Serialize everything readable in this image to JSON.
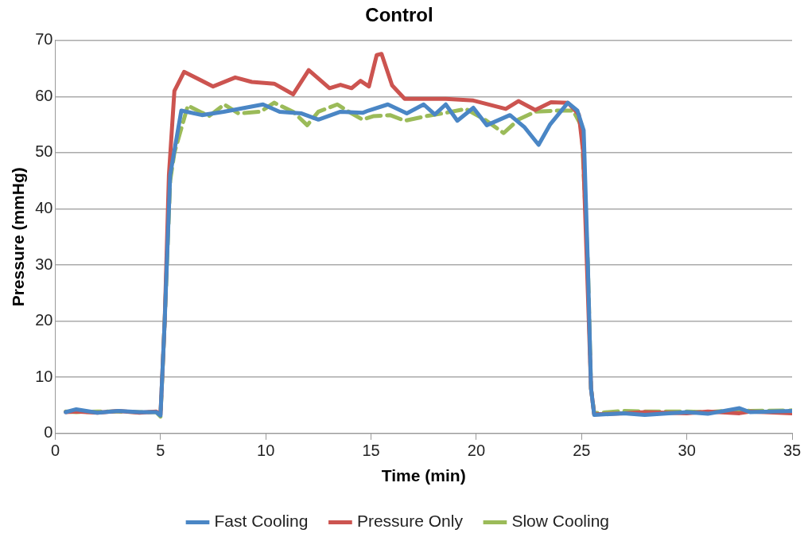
{
  "chart_data": {
    "type": "line",
    "title": "Control",
    "xlabel": "Time (min)",
    "ylabel": "Pressure (mmHg)",
    "xlim": [
      0,
      35
    ],
    "xticks": [
      0,
      5,
      10,
      15,
      20,
      25,
      30,
      35
    ],
    "ylim": [
      0,
      70
    ],
    "yticks": [
      0,
      10,
      20,
      30,
      40,
      50,
      60,
      70
    ],
    "grid": "y",
    "legend": "bottom",
    "marker": "none",
    "series": [
      {
        "name": "Fast Cooling",
        "color": "#4a86c5",
        "line_style": "solid",
        "x": [
          0.5,
          1,
          2,
          3,
          4,
          4.8,
          5,
          5.2,
          5.46,
          5.66,
          5.99,
          6.97,
          8.0,
          9.87,
          10.66,
          11.7,
          12.5,
          13.55,
          14.6,
          14.87,
          15.8,
          16.7,
          17.5,
          18.03,
          18.55,
          19.1,
          19.86,
          20.5,
          21.6,
          22.3,
          22.96,
          23.5,
          24.35,
          24.8,
          25.1,
          25.3,
          25.45,
          25.6,
          27,
          28,
          30,
          31,
          32.5,
          33,
          35
        ],
        "values": [
          3.8,
          4.3,
          3.7,
          4.0,
          3.8,
          3.8,
          3.2,
          20,
          46,
          50.4,
          57.5,
          56.7,
          57.3,
          58.6,
          57.3,
          57.0,
          55.9,
          57.3,
          57.1,
          57.5,
          58.6,
          57.0,
          58.6,
          56.8,
          58.6,
          55.7,
          58.0,
          54.9,
          56.7,
          54.5,
          51.4,
          55,
          58.9,
          57.5,
          54,
          30,
          8,
          3.3,
          3.6,
          3.3,
          3.8,
          3.5,
          4.5,
          3.8,
          4.0
        ]
      },
      {
        "name": "Pressure Only",
        "color": "#cc5450",
        "line_style": "solid",
        "x": [
          0.5,
          1,
          2,
          3,
          4,
          4.8,
          5,
          5.2,
          5.4,
          5.66,
          6.12,
          7.5,
          8.55,
          9.34,
          10.4,
          11.3,
          12.04,
          13.03,
          13.55,
          14.08,
          14.5,
          14.9,
          15.27,
          15.5,
          16.0,
          16.6,
          18.55,
          19.86,
          21.4,
          22.0,
          22.8,
          23.55,
          24.35,
          24.87,
          25.07,
          25.3,
          25.45,
          25.6,
          27,
          28,
          30,
          31,
          32.5,
          33,
          35
        ],
        "values": [
          3.8,
          3.9,
          3.7,
          4.0,
          3.7,
          3.9,
          3.4,
          20,
          46,
          61,
          64.4,
          61.8,
          63.4,
          62.6,
          62.3,
          60.4,
          64.7,
          61.5,
          62.1,
          61.5,
          62.8,
          61.8,
          67.4,
          67.6,
          62.0,
          59.6,
          59.6,
          59.3,
          57.8,
          59.2,
          57.6,
          59.0,
          58.9,
          56.8,
          50.4,
          25,
          8,
          3.4,
          3.6,
          3.8,
          3.6,
          3.9,
          3.6,
          3.9,
          3.6
        ]
      },
      {
        "name": "Slow Cooling",
        "color": "#9bbb59",
        "line_style": "dashed",
        "x": [
          0.5,
          1,
          2,
          3,
          4,
          4.8,
          5,
          5.2,
          5.46,
          5.66,
          6.3,
          7.3,
          8.03,
          8.7,
          9.74,
          10.4,
          11.3,
          11.97,
          12.5,
          13.4,
          14.08,
          14.6,
          15.1,
          15.9,
          16.6,
          17.6,
          18.4,
          19.5,
          20.4,
          21.3,
          22.0,
          22.8,
          23.8,
          24.6,
          25.0,
          25.3,
          25.45,
          25.6,
          27,
          28,
          30,
          31,
          32.5,
          33,
          35
        ],
        "values": [
          3.9,
          3.8,
          3.9,
          3.9,
          3.8,
          3.8,
          3.0,
          20,
          45,
          50,
          58.4,
          56.5,
          58.6,
          57.0,
          57.3,
          58.9,
          57.3,
          54.9,
          57.3,
          58.6,
          57.0,
          55.9,
          56.5,
          56.7,
          55.7,
          56.5,
          57.0,
          57.8,
          55.9,
          53.5,
          55.9,
          57.3,
          57.5,
          57.5,
          54.7,
          30,
          8,
          3.6,
          4.0,
          3.9,
          3.9,
          3.8,
          4.2,
          4.0,
          4.1
        ]
      }
    ]
  }
}
